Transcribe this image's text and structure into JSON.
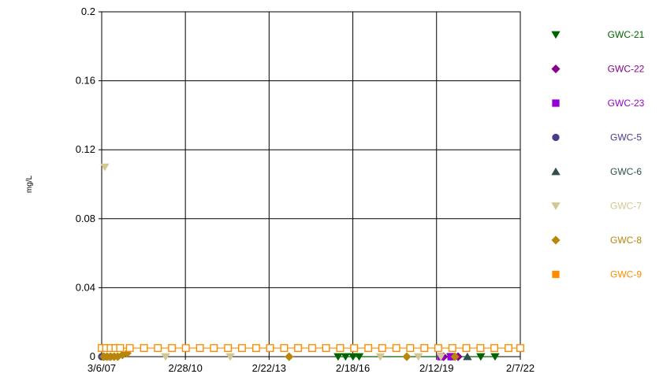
{
  "chart_data": {
    "type": "scatter",
    "title": "",
    "xlabel": "",
    "ylabel": "mg/L",
    "ylim": [
      0,
      0.2
    ],
    "yticks": [
      "0",
      "0.04",
      "0.08",
      "0.12",
      "0.16",
      "0.2"
    ],
    "xlim": [
      "3/6/07",
      "2/7/22"
    ],
    "xticks": [
      "3/6/07",
      "2/28/10",
      "2/22/13",
      "2/18/16",
      "2/12/19",
      "2/7/22"
    ],
    "grid": true,
    "legend_position": "right",
    "series": [
      {
        "name": "GWC-21",
        "color": "#006400",
        "marker": "triangle-down",
        "filled": true,
        "line": true,
        "points": [
          [
            "8/10/15",
            0.0
          ],
          [
            "11/15/15",
            0.0
          ],
          [
            "2/20/16",
            0.0
          ],
          [
            "5/10/16",
            0.0
          ],
          [
            "8/15/19",
            0.0
          ],
          [
            "9/10/20",
            0.0
          ],
          [
            "3/15/21",
            0.0
          ]
        ]
      },
      {
        "name": "GWC-22",
        "color": "#8B008B",
        "marker": "diamond",
        "filled": true,
        "line": false,
        "points": [
          [
            "5/15/19",
            0.0
          ],
          [
            "11/20/19",
            0.0
          ]
        ]
      },
      {
        "name": "GWC-23",
        "color": "#9400D3",
        "marker": "square",
        "filled": true,
        "line": false,
        "points": [
          [
            "4/10/19",
            0.0
          ],
          [
            "8/20/19",
            0.0
          ]
        ]
      },
      {
        "name": "GWC-5",
        "color": "#483D8B",
        "marker": "circle",
        "filled": true,
        "line": false,
        "points": [
          [
            "3/6/07",
            0.0
          ],
          [
            "6/10/07",
            0.0
          ]
        ]
      },
      {
        "name": "GWC-6",
        "color": "#2F4F4F",
        "marker": "triangle-up",
        "filled": true,
        "line": false,
        "points": [
          [
            "4/10/07",
            0.0
          ],
          [
            "3/20/20",
            0.0
          ]
        ]
      },
      {
        "name": "GWC-7",
        "color": "#D2C891",
        "marker": "triangle-down",
        "filled": true,
        "line": false,
        "points": [
          [
            "4/15/07",
            0.11
          ],
          [
            "6/1/07",
            0.0
          ],
          [
            "8/1/07",
            0.0
          ],
          [
            "6/15/09",
            0.0
          ],
          [
            "10/5/11",
            0.0
          ],
          [
            "2/10/17",
            0.0
          ],
          [
            "6/20/18",
            0.0
          ],
          [
            "4/10/19",
            0.0
          ]
        ]
      },
      {
        "name": "GWC-8",
        "color": "#B8860B",
        "marker": "diamond",
        "filled": true,
        "line": false,
        "points": [
          [
            "4/1/07",
            0.0
          ],
          [
            "5/15/07",
            0.0
          ],
          [
            "7/1/07",
            0.0
          ],
          [
            "8/15/07",
            0.0
          ],
          [
            "10/1/07",
            0.0
          ],
          [
            "12/1/07",
            0.001
          ],
          [
            "2/1/08",
            0.002
          ],
          [
            "11/10/13",
            0.0
          ],
          [
            "1/20/18",
            0.0
          ],
          [
            "10/10/19",
            0.0
          ]
        ]
      },
      {
        "name": "GWC-9",
        "color": "#FF8C00",
        "marker": "square",
        "filled": false,
        "line": true,
        "points": [
          [
            "3/6/07",
            0.005
          ],
          [
            "5/1/07",
            0.005
          ],
          [
            "7/1/07",
            0.005
          ],
          [
            "9/1/07",
            0.005
          ],
          [
            "11/1/07",
            0.005
          ],
          [
            "3/6/08",
            0.005
          ],
          [
            "9/6/08",
            0.005
          ],
          [
            "3/6/09",
            0.005
          ],
          [
            "9/6/09",
            0.005
          ],
          [
            "3/6/10",
            0.005
          ],
          [
            "9/6/10",
            0.005
          ],
          [
            "3/6/11",
            0.005
          ],
          [
            "9/6/11",
            0.005
          ],
          [
            "3/6/12",
            0.005
          ],
          [
            "9/6/12",
            0.005
          ],
          [
            "3/6/13",
            0.005
          ],
          [
            "9/6/13",
            0.005
          ],
          [
            "3/6/14",
            0.005
          ],
          [
            "9/6/14",
            0.005
          ],
          [
            "3/6/15",
            0.005
          ],
          [
            "9/6/15",
            0.005
          ],
          [
            "3/6/16",
            0.005
          ],
          [
            "9/6/16",
            0.005
          ],
          [
            "3/6/17",
            0.005
          ],
          [
            "9/6/17",
            0.005
          ],
          [
            "3/6/18",
            0.005
          ],
          [
            "9/6/18",
            0.005
          ],
          [
            "3/6/19",
            0.005
          ],
          [
            "9/6/19",
            0.005
          ],
          [
            "3/6/20",
            0.005
          ],
          [
            "9/6/20",
            0.005
          ],
          [
            "3/6/21",
            0.005
          ],
          [
            "9/6/21",
            0.005
          ],
          [
            "2/7/22",
            0.005
          ]
        ]
      }
    ]
  }
}
